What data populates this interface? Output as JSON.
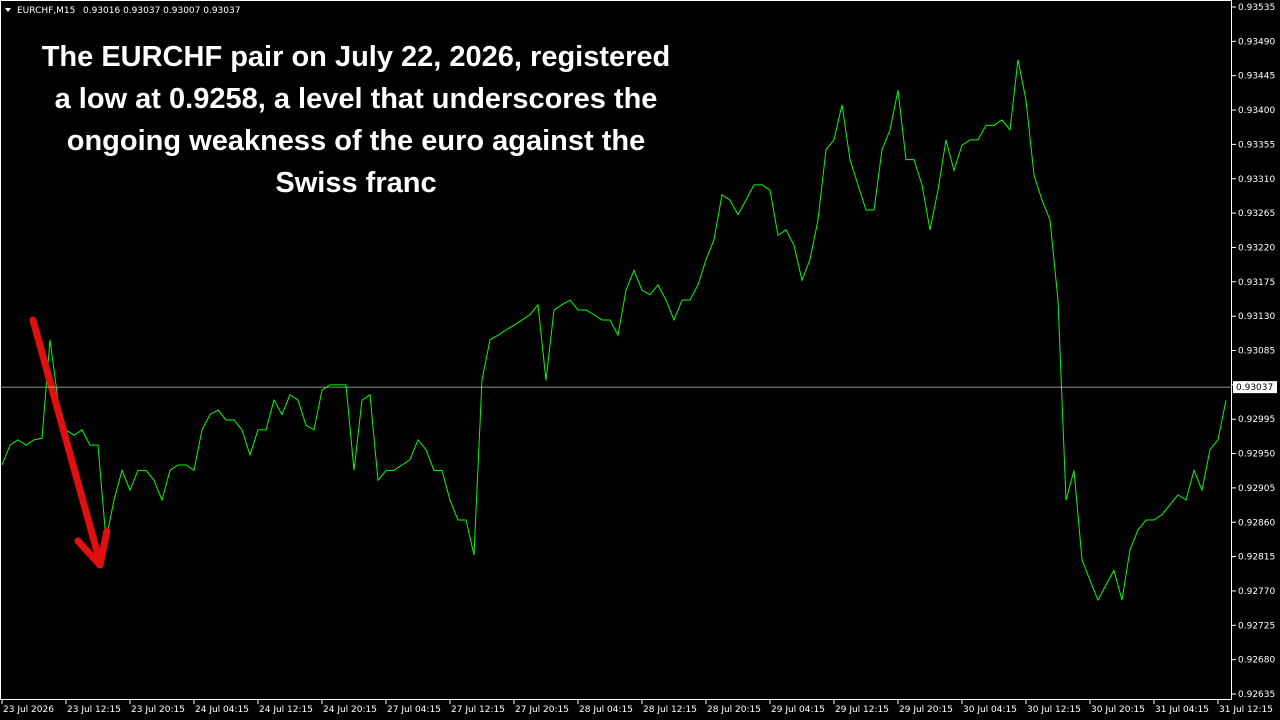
{
  "chart_data": {
    "type": "line",
    "header": "EURCHF,M15",
    "ohlc_label": "0.93016 0.93037 0.93007 0.93037",
    "annotation_lines": [
      "The EURCHF pair on July 22, 2026, registered",
      "a low at 0.9258, a level that underscores the",
      "ongoing weakness of the euro against the",
      "Swiss franc"
    ],
    "categories": [
      "23 Jul 2026",
      null,
      null,
      null,
      null,
      null,
      null,
      null,
      "23 Jul 12:15",
      null,
      null,
      null,
      null,
      null,
      null,
      null,
      "23 Jul 20:15",
      null,
      null,
      null,
      null,
      null,
      null,
      null,
      "24 Jul 04:15",
      null,
      null,
      null,
      null,
      null,
      null,
      null,
      "24 Jul 12:15",
      null,
      null,
      null,
      null,
      null,
      null,
      null,
      "24 Jul 20:15",
      null,
      null,
      null,
      null,
      null,
      null,
      null,
      "27 Jul 04:15",
      null,
      null,
      null,
      null,
      null,
      null,
      null,
      "27 Jul 12:15",
      null,
      null,
      null,
      null,
      null,
      null,
      null,
      "27 Jul 20:15",
      null,
      null,
      null,
      null,
      null,
      null,
      null,
      "28 Jul 04:15",
      null,
      null,
      null,
      null,
      null,
      null,
      null,
      "28 Jul 12:15",
      null,
      null,
      null,
      null,
      null,
      null,
      null,
      "28 Jul 20:15",
      null,
      null,
      null,
      null,
      null,
      null,
      null,
      "29 Jul 04:15",
      null,
      null,
      null,
      null,
      null,
      null,
      null,
      "29 Jul 12:15",
      null,
      null,
      null,
      null,
      null,
      null,
      null,
      "29 Jul 20:15",
      null,
      null,
      null,
      null,
      null,
      null,
      null,
      "30 Jul 04:15",
      null,
      null,
      null,
      null,
      null,
      null,
      null,
      "30 Jul 12:15",
      null,
      null,
      null,
      null,
      null,
      null,
      null,
      "30 Jul 20:15",
      null,
      null,
      null,
      null,
      null,
      null,
      null,
      "31 Jul 04:15",
      null,
      null,
      null,
      null,
      null,
      null,
      null,
      "31 Jul 12:15",
      null
    ],
    "series": [
      {
        "name": "EURCHF,M15",
        "color": "#00ff00",
        "values": [
          0.92935,
          0.92961,
          0.92968,
          0.92961,
          0.92968,
          0.9297,
          0.93099,
          0.9302,
          0.92981,
          0.92974,
          0.92981,
          0.92961,
          0.92961,
          0.92837,
          0.92889,
          0.92928,
          0.92902,
          0.92928,
          0.92928,
          0.92915,
          0.92889,
          0.92928,
          0.92935,
          0.92935,
          0.92928,
          0.92981,
          0.93001,
          0.93007,
          0.92994,
          0.92994,
          0.92981,
          0.92948,
          0.92981,
          0.92981,
          0.9302,
          0.93001,
          0.93027,
          0.9302,
          0.92987,
          0.92981,
          0.93033,
          0.9304,
          0.9304,
          0.9304,
          0.92928,
          0.9302,
          0.93027,
          0.92915,
          0.92928,
          0.92928,
          0.92935,
          0.92942,
          0.92968,
          0.92955,
          0.92928,
          0.92928,
          0.92889,
          0.92863,
          0.92863,
          0.92817,
          0.93046,
          0.93099,
          0.93105,
          0.93112,
          0.93118,
          0.93125,
          0.93132,
          0.93145,
          0.93046,
          0.93138,
          0.93145,
          0.93151,
          0.93138,
          0.93138,
          0.93132,
          0.93125,
          0.93125,
          0.93105,
          0.93164,
          0.9319,
          0.93164,
          0.93158,
          0.93171,
          0.93151,
          0.93125,
          0.93151,
          0.93151,
          0.93171,
          0.93204,
          0.9323,
          0.93289,
          0.93282,
          0.93263,
          0.93282,
          0.93302,
          0.93302,
          0.93295,
          0.93236,
          0.93243,
          0.93223,
          0.93177,
          0.93204,
          0.93256,
          0.93348,
          0.93361,
          0.93407,
          0.93335,
          0.93302,
          0.93269,
          0.93269,
          0.93348,
          0.93374,
          0.93426,
          0.93335,
          0.93335,
          0.93302,
          0.93243,
          0.93295,
          0.93361,
          0.93321,
          0.93354,
          0.93361,
          0.93361,
          0.9338,
          0.9338,
          0.93387,
          0.93374,
          0.93466,
          0.93413,
          0.93315,
          0.93282,
          0.93256,
          0.93151,
          0.92889,
          0.92928,
          0.92811,
          0.92784,
          0.92758,
          0.92778,
          0.92797,
          0.92758,
          0.92824,
          0.9285,
          0.92863,
          0.92863,
          0.9287,
          0.92883,
          0.92896,
          0.92889,
          0.92928,
          0.92902,
          0.92955,
          0.92968,
          0.9302
        ]
      }
    ],
    "current_price": {
      "value": 0.93037,
      "label": "0.93037"
    },
    "ylim": [
      0.92635,
      0.93535
    ],
    "yticks": [
      {
        "value": 0.93535,
        "label": "0.93535"
      },
      {
        "value": 0.9349,
        "label": "0.93490"
      },
      {
        "value": 0.93445,
        "label": "0.93445"
      },
      {
        "value": 0.934,
        "label": "0.93400"
      },
      {
        "value": 0.93355,
        "label": "0.93355"
      },
      {
        "value": 0.9331,
        "label": "0.93310"
      },
      {
        "value": 0.93265,
        "label": "0.93265"
      },
      {
        "value": 0.9322,
        "label": "0.93220"
      },
      {
        "value": 0.93175,
        "label": "0.93175"
      },
      {
        "value": 0.9313,
        "label": "0.93130"
      },
      {
        "value": 0.93085,
        "label": "0.93085"
      },
      {
        "value": 0.9304,
        "label": "0.93040"
      },
      {
        "value": 0.92995,
        "label": "0.92995"
      },
      {
        "value": 0.9295,
        "label": "0.92950"
      },
      {
        "value": 0.92905,
        "label": "0.92905"
      },
      {
        "value": 0.9286,
        "label": "0.92860"
      },
      {
        "value": 0.92815,
        "label": "0.92815"
      },
      {
        "value": 0.9277,
        "label": "0.92770"
      },
      {
        "value": 0.92725,
        "label": "0.92725"
      },
      {
        "value": 0.9268,
        "label": "0.92680"
      },
      {
        "value": 0.92635,
        "label": "0.92635"
      }
    ]
  }
}
